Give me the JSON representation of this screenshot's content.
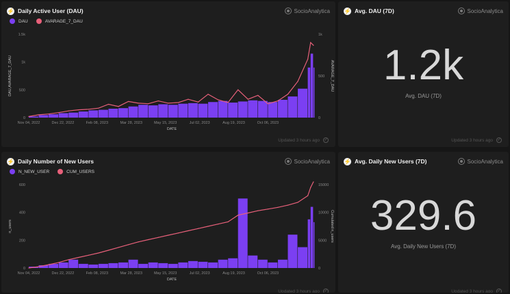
{
  "brand": "SocioAnalytica",
  "updated": "Updated 3 hours ago",
  "panels": {
    "dau": {
      "title": "Daily Active User (DAU)",
      "legend": [
        "DAU",
        "AVARAGE_7_DAU"
      ],
      "left_axis": "DAU,AVARAGE_7_DAU",
      "right_axis": "AVARAGE_7_DAU",
      "xlabel": "DATE"
    },
    "avg_dau": {
      "title": "Avg. DAU (7D)",
      "value": "1.2k",
      "label": "Avg. DAU (7D)"
    },
    "new_users": {
      "title": "Daily Number of New Users",
      "legend": [
        "N_NEW_USER",
        "CUM_USERS"
      ],
      "left_axis": "n_users",
      "right_axis": "Cumulated n_users",
      "xlabel": "DATE"
    },
    "avg_new": {
      "title": "Avg. Daily New Users (7D)",
      "value": "329.6",
      "label": "Avg. Daily New Users (7D)"
    }
  },
  "colors": {
    "bar": "#7b3ff2",
    "line": "#e8607a",
    "panel": "#1e1e1e",
    "bg": "#161616"
  },
  "chart_data": [
    {
      "type": "bar",
      "title": "Daily Active User (DAU)",
      "xlabel": "DATE",
      "ylabel": "DAU,AVARAGE_7_DAU",
      "y2label": "AVARAGE_7_DAU",
      "x_ticks": [
        "Nov 04, 2022",
        "Dec 22, 2022",
        "Feb 08, 2023",
        "Mar 28, 2023",
        "May 15, 2023",
        "Jul 02, 2023",
        "Aug 19, 2023",
        "Oct 06, 2023"
      ],
      "y_ticks": [
        "0",
        "500",
        "1k",
        "1.5k"
      ],
      "y2_ticks": [
        "0",
        "500",
        "1k"
      ],
      "ylim": [
        0,
        1500
      ],
      "y2lim": [
        0,
        1500
      ],
      "series": [
        {
          "name": "DAU",
          "kind": "bar",
          "x": [
            "2022-11-04",
            "2022-11-18",
            "2022-12-02",
            "2022-12-16",
            "2022-12-30",
            "2023-01-13",
            "2023-01-27",
            "2023-02-10",
            "2023-02-24",
            "2023-03-10",
            "2023-03-24",
            "2023-04-07",
            "2023-04-21",
            "2023-05-05",
            "2023-05-19",
            "2023-06-02",
            "2023-06-16",
            "2023-06-30",
            "2023-07-14",
            "2023-07-28",
            "2023-08-11",
            "2023-08-25",
            "2023-09-08",
            "2023-09-22",
            "2023-10-06",
            "2023-10-20",
            "2023-11-03",
            "2023-11-17",
            "2023-12-01",
            "2023-12-05",
            "2023-12-09"
          ],
          "values": [
            20,
            45,
            60,
            80,
            90,
            110,
            130,
            140,
            160,
            170,
            200,
            230,
            220,
            240,
            230,
            250,
            260,
            250,
            280,
            300,
            270,
            290,
            310,
            300,
            280,
            320,
            380,
            520,
            900,
            1150,
            900
          ]
        },
        {
          "name": "AVARAGE_7_DAU",
          "kind": "line",
          "x": [
            "2022-11-04",
            "2022-11-18",
            "2022-12-02",
            "2022-12-16",
            "2022-12-30",
            "2023-01-13",
            "2023-01-27",
            "2023-02-10",
            "2023-02-24",
            "2023-03-10",
            "2023-03-24",
            "2023-04-07",
            "2023-04-21",
            "2023-05-05",
            "2023-05-19",
            "2023-06-02",
            "2023-06-16",
            "2023-06-30",
            "2023-07-14",
            "2023-07-28",
            "2023-08-11",
            "2023-08-25",
            "2023-09-08",
            "2023-09-22",
            "2023-10-06",
            "2023-10-20",
            "2023-11-03",
            "2023-11-17",
            "2023-12-01",
            "2023-12-05",
            "2023-12-09"
          ],
          "values": [
            20,
            50,
            65,
            90,
            120,
            140,
            150,
            170,
            240,
            200,
            290,
            260,
            250,
            300,
            260,
            270,
            330,
            280,
            420,
            320,
            270,
            500,
            330,
            400,
            250,
            300,
            420,
            650,
            1050,
            1350,
            1300
          ]
        }
      ]
    },
    {
      "type": "bar",
      "title": "Daily Number of New Users",
      "xlabel": "DATE",
      "ylabel": "n_users",
      "y2label": "Cumulated n_users",
      "x_ticks": [
        "Nov 04, 2022",
        "Dec 22, 2022",
        "Feb 08, 2023",
        "Mar 28, 2023",
        "May 15, 2023",
        "Jul 02, 2023",
        "Aug 19, 2023",
        "Oct 06, 2023"
      ],
      "y_ticks": [
        "0",
        "200",
        "400",
        "600"
      ],
      "y2_ticks": [
        "0",
        "5000",
        "10000",
        "15000"
      ],
      "ylim": [
        0,
        600
      ],
      "y2lim": [
        0,
        15000
      ],
      "series": [
        {
          "name": "N_NEW_USER",
          "kind": "bar",
          "x": [
            "2022-11-04",
            "2022-11-18",
            "2022-12-02",
            "2022-12-16",
            "2022-12-30",
            "2023-01-13",
            "2023-01-27",
            "2023-02-10",
            "2023-02-24",
            "2023-03-10",
            "2023-03-24",
            "2023-04-07",
            "2023-04-21",
            "2023-05-05",
            "2023-05-19",
            "2023-06-02",
            "2023-06-16",
            "2023-06-30",
            "2023-07-14",
            "2023-07-28",
            "2023-08-11",
            "2023-08-25",
            "2023-09-08",
            "2023-09-22",
            "2023-10-06",
            "2023-10-20",
            "2023-11-03",
            "2023-11-17",
            "2023-12-01",
            "2023-12-05",
            "2023-12-09"
          ],
          "values": [
            10,
            20,
            30,
            40,
            60,
            30,
            25,
            30,
            35,
            40,
            60,
            30,
            40,
            35,
            30,
            40,
            50,
            45,
            40,
            60,
            70,
            500,
            90,
            60,
            40,
            60,
            240,
            150,
            350,
            440,
            330
          ]
        },
        {
          "name": "CUM_USERS",
          "kind": "line",
          "x": [
            "2022-11-04",
            "2022-11-18",
            "2022-12-02",
            "2022-12-16",
            "2022-12-30",
            "2023-01-13",
            "2023-01-27",
            "2023-02-10",
            "2023-02-24",
            "2023-03-10",
            "2023-03-24",
            "2023-04-07",
            "2023-04-21",
            "2023-05-05",
            "2023-05-19",
            "2023-06-02",
            "2023-06-16",
            "2023-06-30",
            "2023-07-14",
            "2023-07-28",
            "2023-08-11",
            "2023-08-25",
            "2023-09-08",
            "2023-09-22",
            "2023-10-06",
            "2023-10-20",
            "2023-11-03",
            "2023-11-17",
            "2023-12-01",
            "2023-12-05",
            "2023-12-09"
          ],
          "values": [
            0,
            250,
            600,
            1000,
            1500,
            1900,
            2300,
            2700,
            3200,
            3700,
            4200,
            4700,
            5100,
            5500,
            5900,
            6300,
            6700,
            7100,
            7500,
            7900,
            8300,
            9500,
            9900,
            10300,
            10600,
            10900,
            11300,
            11800,
            13000,
            14500,
            15500
          ]
        }
      ]
    }
  ]
}
